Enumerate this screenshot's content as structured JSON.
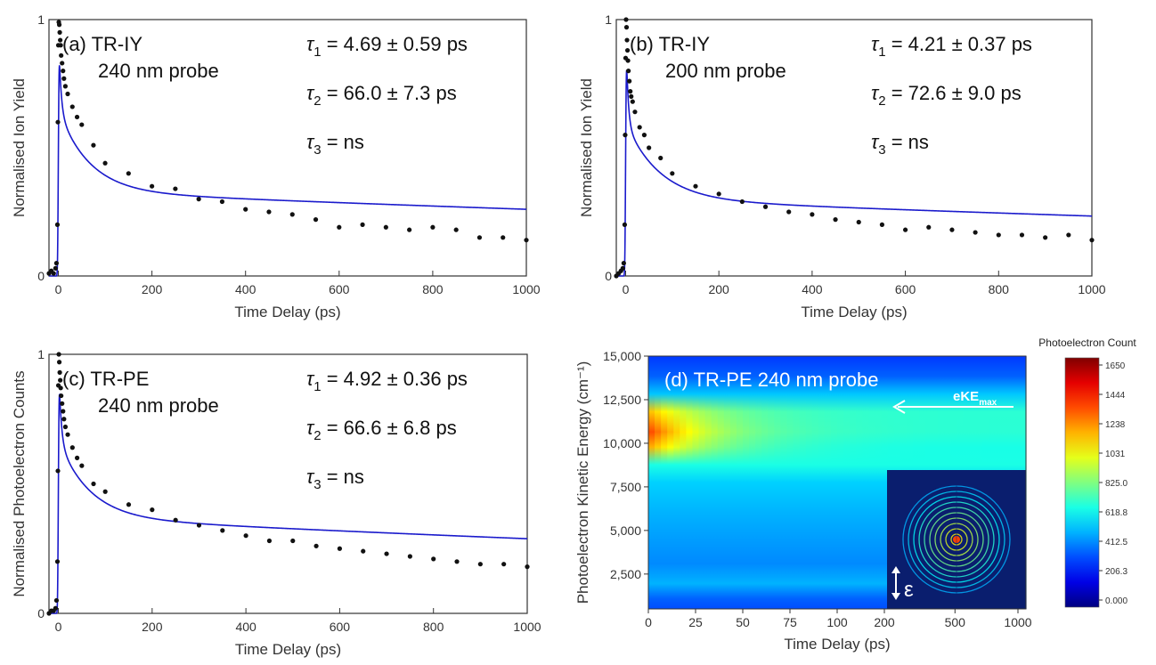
{
  "chart_data": [
    {
      "id": "a",
      "type": "scatter",
      "title": "(a)  TR-IY",
      "subtitle": "240 nm probe",
      "xlabel": "Time Delay (ps)",
      "ylabel": "Normalised Ion Yield",
      "xlim": [
        -20,
        1000
      ],
      "ylim": [
        0,
        1
      ],
      "xticks": [
        0,
        200,
        400,
        600,
        800,
        1000
      ],
      "yticks": [
        0,
        1
      ],
      "annotations": [
        "τ₁ = 4.69 ± 0.59 ps",
        "τ₂ = 66.0 ± 7.3 ps",
        "τ₃ = ns"
      ],
      "fit_color": "#1a1acc",
      "series": [
        {
          "type": "points",
          "x": [
            -20,
            -15,
            -10,
            -6,
            -4,
            -2,
            -1,
            0,
            1,
            2,
            3,
            4,
            5,
            6,
            8,
            10,
            12,
            15,
            20,
            30,
            40,
            50,
            75,
            100,
            150,
            200,
            250,
            300,
            350,
            400,
            450,
            500,
            550,
            600,
            650,
            700,
            750,
            800,
            850,
            900,
            950,
            1000
          ],
          "y": [
            0.01,
            0.02,
            0.01,
            0.03,
            0.05,
            0.2,
            0.6,
            0.9,
            0.99,
            0.98,
            0.95,
            0.92,
            0.9,
            0.86,
            0.83,
            0.8,
            0.77,
            0.74,
            0.71,
            0.66,
            0.62,
            0.59,
            0.51,
            0.44,
            0.4,
            0.35,
            0.34,
            0.3,
            0.29,
            0.26,
            0.25,
            0.24,
            0.22,
            0.19,
            0.2,
            0.19,
            0.18,
            0.19,
            0.18,
            0.15,
            0.15,
            0.14
          ]
        },
        {
          "type": "fit",
          "amp": [
            0.33,
            0.32,
            0.33
          ],
          "tau": [
            4.69,
            66.0,
            4200
          ],
          "sigma": 1.2
        }
      ]
    },
    {
      "id": "b",
      "type": "scatter",
      "title": "(b)  TR-IY",
      "subtitle": "200 nm probe",
      "xlabel": "Time Delay (ps)",
      "ylabel": "Normalised Ion Yield",
      "xlim": [
        -20,
        1000
      ],
      "ylim": [
        0,
        1
      ],
      "xticks": [
        0,
        200,
        400,
        600,
        800,
        1000
      ],
      "yticks": [
        0,
        1
      ],
      "annotations": [
        "τ₁ = 4.21 ± 0.37 ps",
        "τ₂ = 72.6 ± 9.0 ps",
        "τ₃ = ns"
      ],
      "fit_color": "#1a1acc",
      "series": [
        {
          "type": "points",
          "x": [
            -20,
            -15,
            -10,
            -6,
            -4,
            -2,
            -1,
            0,
            1,
            2,
            3,
            4,
            5,
            6,
            8,
            10,
            12,
            15,
            20,
            30,
            40,
            50,
            75,
            100,
            150,
            200,
            250,
            300,
            350,
            400,
            450,
            500,
            550,
            600,
            650,
            700,
            750,
            800,
            850,
            900,
            950,
            1000
          ],
          "y": [
            0.0,
            0.01,
            0.02,
            0.03,
            0.05,
            0.2,
            0.55,
            0.85,
            1.0,
            0.97,
            0.92,
            0.88,
            0.84,
            0.8,
            0.76,
            0.72,
            0.7,
            0.68,
            0.64,
            0.58,
            0.55,
            0.5,
            0.46,
            0.4,
            0.35,
            0.32,
            0.29,
            0.27,
            0.25,
            0.24,
            0.22,
            0.21,
            0.2,
            0.18,
            0.19,
            0.18,
            0.17,
            0.16,
            0.16,
            0.15,
            0.16,
            0.14
          ]
        },
        {
          "type": "fit",
          "amp": [
            0.4,
            0.3,
            0.3
          ],
          "tau": [
            4.21,
            72.6,
            4000
          ],
          "sigma": 1.2
        }
      ]
    },
    {
      "id": "c",
      "type": "scatter",
      "title": "(c)  TR-PE",
      "subtitle": "240 nm probe",
      "xlabel": "Time Delay (ps)",
      "ylabel": "Normalised Photoelectron Counts",
      "xlim": [
        -20,
        1000
      ],
      "ylim": [
        0,
        1
      ],
      "xticks": [
        0,
        200,
        400,
        600,
        800,
        1000
      ],
      "yticks": [
        0,
        1
      ],
      "annotations": [
        "τ₁ = 4.92 ± 0.36 ps",
        "τ₂ = 66.6 ± 6.8 ps",
        "τ₃ = ns"
      ],
      "fit_color": "#1a1acc",
      "series": [
        {
          "type": "points",
          "x": [
            -20,
            -15,
            -10,
            -6,
            -4,
            -2,
            -1,
            0,
            1,
            2,
            3,
            4,
            5,
            6,
            8,
            10,
            12,
            15,
            20,
            30,
            40,
            50,
            75,
            100,
            150,
            200,
            250,
            300,
            350,
            400,
            450,
            500,
            550,
            600,
            650,
            700,
            750,
            800,
            850,
            900,
            950,
            1000
          ],
          "y": [
            0.0,
            0.01,
            0.01,
            0.02,
            0.05,
            0.2,
            0.55,
            0.88,
            1.0,
            0.97,
            0.93,
            0.9,
            0.87,
            0.84,
            0.81,
            0.78,
            0.75,
            0.72,
            0.69,
            0.64,
            0.6,
            0.57,
            0.5,
            0.47,
            0.42,
            0.4,
            0.36,
            0.34,
            0.32,
            0.3,
            0.28,
            0.28,
            0.26,
            0.25,
            0.24,
            0.23,
            0.22,
            0.21,
            0.2,
            0.19,
            0.19,
            0.18
          ]
        },
        {
          "type": "fit",
          "amp": [
            0.33,
            0.3,
            0.37
          ],
          "tau": [
            4.92,
            66.6,
            4000
          ],
          "sigma": 1.2
        }
      ]
    },
    {
      "id": "d",
      "type": "heatmap",
      "title": "(d) TR-PE 240 nm probe",
      "xlabel": "Time Delay (ps)",
      "ylabel": "Photoelectron Kinetic Energy (cm⁻¹)",
      "xticks": [
        "0",
        "25",
        "50",
        "75",
        "100",
        "200",
        "500",
        "1000"
      ],
      "yticks": [
        "2,500",
        "5,000",
        "7,500",
        "10,000",
        "12,500",
        "15,000"
      ],
      "ylim": [
        500,
        15000
      ],
      "arrow_label": "eKE",
      "arrow_label_sub": "max",
      "polarization_symbol": "ε",
      "colorbar_title": "Photoelectron Count",
      "colorbar_ticks": [
        "1650",
        "1444",
        "1238",
        "1031",
        "825.0",
        "618.8",
        "412.5",
        "206.3",
        "0.000"
      ],
      "colorbar_range": [
        0,
        1650
      ]
    }
  ]
}
